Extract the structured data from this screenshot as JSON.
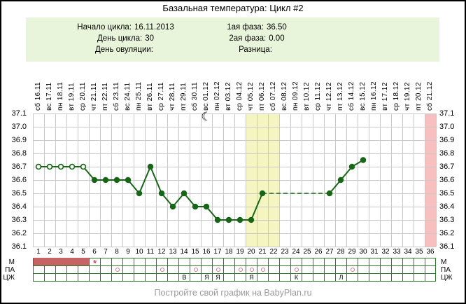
{
  "title": "Базальная температура: Цикл #2",
  "info": {
    "left": [
      {
        "label": "Начало цикла:",
        "value": "16.11.2013"
      },
      {
        "label": "День цикла:",
        "value": "30"
      },
      {
        "label": "День овуляции:",
        "value": ""
      }
    ],
    "right": [
      {
        "label": "1ая фаза:",
        "value": "36.50"
      },
      {
        "label": "2ая фаза:",
        "value": "0.00"
      },
      {
        "label": "Разница:",
        "value": ""
      }
    ]
  },
  "footer": "Постройте свой график на BabyPlan.ru",
  "chart_data": {
    "type": "line",
    "title": "Базальная температура: Цикл #2",
    "ylabel": "",
    "xlabel": "",
    "ylim": [
      36.1,
      37.1
    ],
    "ytick_step": 0.1,
    "ytick_labels": [
      "37.1",
      "37.0",
      "36.9",
      "36.8",
      "36.7",
      "36.6",
      "36.5",
      "36.4",
      "36.3",
      "36.2",
      "36.1"
    ],
    "grid": true,
    "dates": [
      {
        "day": 1,
        "weekday": "сб",
        "date": "16.11"
      },
      {
        "day": 2,
        "weekday": "вс",
        "date": "17.11"
      },
      {
        "day": 3,
        "weekday": "пн",
        "date": "18.11"
      },
      {
        "day": 4,
        "weekday": "вт",
        "date": "19.11"
      },
      {
        "day": 5,
        "weekday": "ср",
        "date": "20.11"
      },
      {
        "day": 6,
        "weekday": "чт",
        "date": "21.11"
      },
      {
        "day": 7,
        "weekday": "пт",
        "date": "22.11"
      },
      {
        "day": 8,
        "weekday": "сб",
        "date": "23.11"
      },
      {
        "day": 9,
        "weekday": "вс",
        "date": "24.11"
      },
      {
        "day": 10,
        "weekday": "пн",
        "date": "25.11"
      },
      {
        "day": 11,
        "weekday": "вт",
        "date": "26.11"
      },
      {
        "day": 12,
        "weekday": "ср",
        "date": "27.11"
      },
      {
        "day": 13,
        "weekday": "чт",
        "date": "28.11"
      },
      {
        "day": 14,
        "weekday": "пт",
        "date": "29.11"
      },
      {
        "day": 15,
        "weekday": "сб",
        "date": "30.11"
      },
      {
        "day": 16,
        "weekday": "вс",
        "date": "01.12"
      },
      {
        "day": 17,
        "weekday": "пн",
        "date": "02.12"
      },
      {
        "day": 18,
        "weekday": "вт",
        "date": "03.12"
      },
      {
        "day": 19,
        "weekday": "ср",
        "date": "04.12"
      },
      {
        "day": 20,
        "weekday": "чт",
        "date": "05.12"
      },
      {
        "day": 21,
        "weekday": "пт",
        "date": "06.12"
      },
      {
        "day": 22,
        "weekday": "сб",
        "date": "07.12"
      },
      {
        "day": 23,
        "weekday": "вс",
        "date": "08.12"
      },
      {
        "day": 24,
        "weekday": "пн",
        "date": "09.12"
      },
      {
        "day": 25,
        "weekday": "вт",
        "date": "10.12"
      },
      {
        "day": 26,
        "weekday": "ср",
        "date": "11.12"
      },
      {
        "day": 27,
        "weekday": "чт",
        "date": "12.12"
      },
      {
        "day": 28,
        "weekday": "пт",
        "date": "13.12"
      },
      {
        "day": 29,
        "weekday": "сб",
        "date": "14.12"
      },
      {
        "day": 30,
        "weekday": "вс",
        "date": "15.12"
      },
      {
        "day": 31,
        "weekday": "пн",
        "date": "16.12"
      },
      {
        "day": 32,
        "weekday": "вт",
        "date": "17.12"
      },
      {
        "day": 33,
        "weekday": "ср",
        "date": "18.12"
      },
      {
        "day": 34,
        "weekday": "чт",
        "date": "19.12"
      },
      {
        "day": 35,
        "weekday": "пт",
        "date": "20.12"
      },
      {
        "day": 36,
        "weekday": "сб",
        "date": "21.12"
      }
    ],
    "points": [
      {
        "day": 1,
        "temp": 36.7,
        "marker": "open"
      },
      {
        "day": 2,
        "temp": 36.7,
        "marker": "open"
      },
      {
        "day": 3,
        "temp": 36.7,
        "marker": "open"
      },
      {
        "day": 4,
        "temp": 36.7,
        "marker": "open"
      },
      {
        "day": 5,
        "temp": 36.7,
        "marker": "open"
      },
      {
        "day": 6,
        "temp": 36.6,
        "marker": "filled"
      },
      {
        "day": 7,
        "temp": 36.6,
        "marker": "filled"
      },
      {
        "day": 8,
        "temp": 36.6,
        "marker": "filled"
      },
      {
        "day": 9,
        "temp": 36.6,
        "marker": "filled"
      },
      {
        "day": 10,
        "temp": 36.5,
        "marker": "filled"
      },
      {
        "day": 11,
        "temp": 36.7,
        "marker": "filled"
      },
      {
        "day": 12,
        "temp": 36.5,
        "marker": "filled"
      },
      {
        "day": 13,
        "temp": 36.4,
        "marker": "filled"
      },
      {
        "day": 14,
        "temp": 36.5,
        "marker": "filled"
      },
      {
        "day": 15,
        "temp": 36.4,
        "marker": "filled"
      },
      {
        "day": 16,
        "temp": 36.4,
        "marker": "filled"
      },
      {
        "day": 17,
        "temp": 36.3,
        "marker": "filled"
      },
      {
        "day": 18,
        "temp": 36.3,
        "marker": "filled"
      },
      {
        "day": 19,
        "temp": 36.3,
        "marker": "filled"
      },
      {
        "day": 20,
        "temp": 36.3,
        "marker": "filled"
      },
      {
        "day": 21,
        "temp": 36.5,
        "marker": "filled"
      },
      {
        "day": 27,
        "temp": 36.5,
        "marker": "filled"
      },
      {
        "day": 28,
        "temp": 36.6,
        "marker": "filled"
      },
      {
        "day": 29,
        "temp": 36.7,
        "marker": "filled"
      },
      {
        "day": 30,
        "temp": 36.75,
        "marker": "filled"
      }
    ],
    "yellow_band_days": [
      20,
      21,
      22
    ],
    "pink_band_days": [
      36
    ],
    "moon": {
      "day": 16,
      "symbol": "☾"
    },
    "rows": {
      "m": {
        "label": "М",
        "filled_days": [
          1,
          2,
          3,
          4,
          5
        ],
        "asterisk_day": 6,
        "asterisk": "*"
      },
      "pa": {
        "label": "ПА",
        "circle_days": [
          8,
          12,
          15,
          17,
          19,
          20,
          21,
          24,
          29
        ]
      },
      "cj": {
        "label": "ЦЖ",
        "letters": {
          "14": "В",
          "16": "Я",
          "17": "Я",
          "20": "Я",
          "24": "К",
          "28": "Л"
        }
      }
    },
    "colors": {
      "line": "#176617",
      "grid": "#c9c9c9",
      "yellow_band": "#f5f5c2",
      "pink_band": "#f7bfc0",
      "menses_fill": "#c66465",
      "cell_border": "#2b7a2b",
      "pa_circle": "#cf8080",
      "asterisk": "#cb4a5a",
      "info_bg": "#e9f5da",
      "footer_text": "#9a9a9a"
    }
  }
}
